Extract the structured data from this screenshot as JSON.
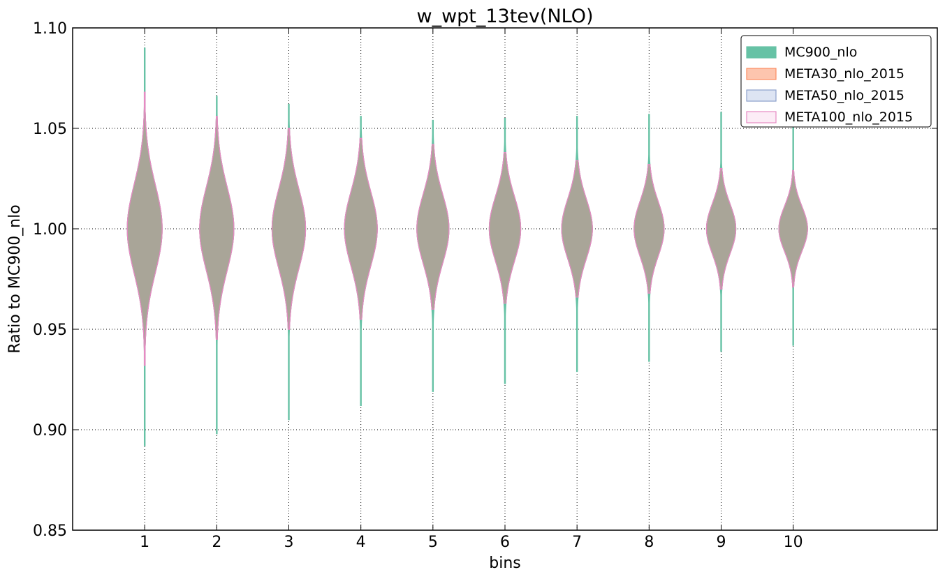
{
  "chart_data": {
    "type": "violin",
    "title": "w_wpt_13tev(NLO)",
    "xlabel": "bins",
    "ylabel": "Ratio to MC900_nlo",
    "xlim": [
      0,
      12
    ],
    "ylim": [
      0.85,
      1.1
    ],
    "xticks": [
      "1",
      "2",
      "3",
      "4",
      "5",
      "6",
      "7",
      "8",
      "9",
      "10"
    ],
    "yticks": [
      "0.85",
      "0.90",
      "0.95",
      "1.00",
      "1.05",
      "1.10"
    ],
    "grid": true,
    "legend_position": "top-right",
    "series": [
      {
        "name": "MC900_nlo",
        "color": "#66c2a5",
        "fill": "#66c2a5",
        "min": [
          0.892,
          0.898,
          0.905,
          0.912,
          0.919,
          0.923,
          0.929,
          0.934,
          0.939,
          0.942
        ],
        "max": [
          1.09,
          1.066,
          1.062,
          1.056,
          1.054,
          1.055,
          1.056,
          1.057,
          1.058,
          1.055
        ]
      },
      {
        "name": "META30_nlo_2015",
        "color": "#fc8d62",
        "fill": "#fdc5ae",
        "min": [
          0.932,
          0.945,
          0.95,
          0.955,
          0.96,
          0.963,
          0.966,
          0.968,
          0.97,
          0.971
        ],
        "max": [
          1.068,
          1.056,
          1.05,
          1.045,
          1.042,
          1.038,
          1.034,
          1.032,
          1.03,
          1.029
        ]
      },
      {
        "name": "META50_nlo_2015",
        "color": "#8da0cb",
        "fill": "#dde4f3",
        "min": [
          0.932,
          0.945,
          0.95,
          0.955,
          0.96,
          0.963,
          0.966,
          0.968,
          0.97,
          0.971
        ],
        "max": [
          1.068,
          1.056,
          1.05,
          1.045,
          1.042,
          1.038,
          1.034,
          1.032,
          1.03,
          1.029
        ]
      },
      {
        "name": "META100_nlo_2015",
        "color": "#e78ac3",
        "fill": "#fcecf6",
        "min": [
          0.932,
          0.945,
          0.95,
          0.955,
          0.96,
          0.963,
          0.966,
          0.968,
          0.97,
          0.971
        ],
        "max": [
          1.068,
          1.056,
          1.05,
          1.045,
          1.042,
          1.038,
          1.034,
          1.032,
          1.03,
          1.029
        ]
      }
    ],
    "overlap_fill": "#b0a397"
  }
}
